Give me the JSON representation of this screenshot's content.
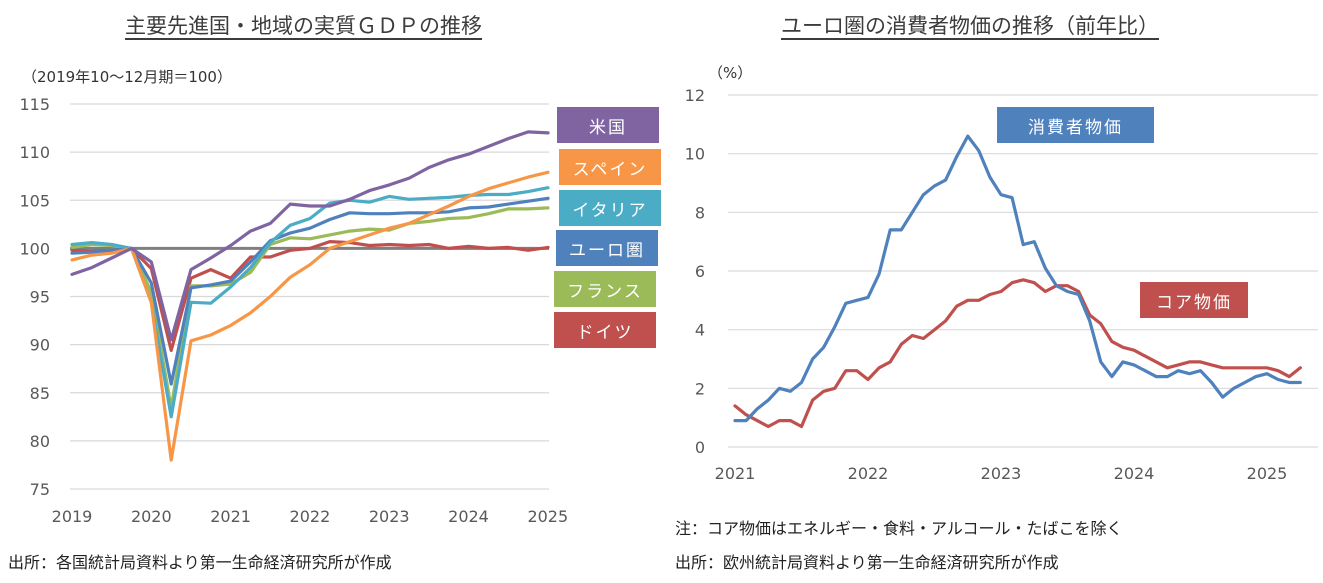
{
  "chart_data": [
    {
      "type": "line",
      "title": "主要先進国・地域の実質ＧＤＰの推移",
      "ylabel": "（2019年10～12月期＝100）",
      "xlabel": "",
      "frequency": "quarterly",
      "x_start": "2019Q1",
      "x_end": "2025Q1",
      "xticks": [
        "2019",
        "2020",
        "2021",
        "2022",
        "2023",
        "2024",
        "2025"
      ],
      "yticks": [
        75,
        80,
        85,
        90,
        95,
        100,
        105,
        110,
        115
      ],
      "ylim": [
        75,
        115
      ],
      "grid": true,
      "reference_line": {
        "value": 100,
        "color": "#7f7f7f"
      },
      "legend_placement": "right",
      "series": [
        {
          "name": "米国",
          "color": "#8064a2",
          "values": [
            97.3,
            98.0,
            99.0,
            100.0,
            98.6,
            90.5,
            97.8,
            99.0,
            100.3,
            101.8,
            102.6,
            104.6,
            104.4,
            104.4,
            105.1,
            106.0,
            106.6,
            107.3,
            108.4,
            109.2,
            109.8,
            110.6,
            111.4,
            112.1,
            112.0
          ]
        },
        {
          "name": "スペイン",
          "color": "#f79646",
          "values": [
            98.8,
            99.3,
            99.5,
            100.0,
            94.4,
            78.0,
            90.4,
            91.0,
            92.0,
            93.3,
            95.0,
            97.0,
            98.3,
            100.0,
            100.7,
            101.4,
            102.1,
            102.6,
            103.5,
            104.4,
            105.4,
            106.2,
            106.8,
            107.4,
            107.9
          ]
        },
        {
          "name": "イタリア",
          "color": "#4bacc6",
          "values": [
            100.4,
            100.6,
            100.4,
            100.0,
            94.4,
            82.5,
            94.4,
            94.3,
            96.0,
            98.0,
            100.6,
            102.4,
            103.1,
            104.7,
            105.0,
            104.8,
            105.4,
            105.1,
            105.2,
            105.3,
            105.5,
            105.6,
            105.6,
            105.9,
            106.3
          ]
        },
        {
          "name": "ユーロ圏",
          "color": "#4f81bd",
          "values": [
            99.5,
            99.6,
            99.8,
            100.0,
            96.4,
            85.9,
            95.9,
            96.2,
            96.6,
            98.6,
            100.8,
            101.6,
            102.1,
            103.0,
            103.7,
            103.6,
            103.6,
            103.7,
            103.7,
            103.8,
            104.2,
            104.3,
            104.6,
            104.9,
            105.2
          ]
        },
        {
          "name": "フランス",
          "color": "#9bbb59",
          "values": [
            100.1,
            100.4,
            100.3,
            100.0,
            95.4,
            83.4,
            96.1,
            96.1,
            96.3,
            97.5,
            100.4,
            101.1,
            101.0,
            101.4,
            101.8,
            102.0,
            101.9,
            102.6,
            102.8,
            103.1,
            103.2,
            103.6,
            104.1,
            104.1,
            104.2
          ]
        },
        {
          "name": "ドイツ",
          "color": "#c0504d",
          "values": [
            99.8,
            99.7,
            99.8,
            100.0,
            97.9,
            89.4,
            96.9,
            97.8,
            96.9,
            99.1,
            99.1,
            99.8,
            100.0,
            100.7,
            100.6,
            100.3,
            100.4,
            100.3,
            100.4,
            100.0,
            100.2,
            100.0,
            100.1,
            99.8,
            100.1
          ]
        }
      ],
      "source": "出所：各国統計局資料より第一生命経済研究所が作成"
    },
    {
      "type": "line",
      "title": "ユーロ圏の消費者物価の推移（前年比）",
      "ylabel": "（%）",
      "xlabel": "",
      "frequency": "monthly",
      "x_start": "2021-01",
      "x_end": "2025-04",
      "xticks": [
        "2021",
        "2022",
        "2023",
        "2024",
        "2025"
      ],
      "yticks": [
        0,
        2,
        4,
        6,
        8,
        10,
        12
      ],
      "ylim": [
        0,
        12
      ],
      "grid": true,
      "legend_placement": "inline-labels",
      "series": [
        {
          "name": "消費者物価",
          "color": "#4f81bd",
          "values": [
            0.9,
            0.9,
            1.3,
            1.6,
            2.0,
            1.9,
            2.2,
            3.0,
            3.4,
            4.1,
            4.9,
            5.0,
            5.1,
            5.9,
            7.4,
            7.4,
            8.0,
            8.6,
            8.9,
            9.1,
            9.9,
            10.6,
            10.1,
            9.2,
            8.6,
            8.5,
            6.9,
            7.0,
            6.1,
            5.5,
            5.3,
            5.2,
            4.3,
            2.9,
            2.4,
            2.9,
            2.8,
            2.6,
            2.4,
            2.4,
            2.6,
            2.5,
            2.6,
            2.2,
            1.7,
            2.0,
            2.2,
            2.4,
            2.5,
            2.3,
            2.2,
            2.2
          ]
        },
        {
          "name": "コア物価",
          "color": "#c0504d",
          "values": [
            1.4,
            1.1,
            0.9,
            0.7,
            0.9,
            0.9,
            0.7,
            1.6,
            1.9,
            2.0,
            2.6,
            2.6,
            2.3,
            2.7,
            2.9,
            3.5,
            3.8,
            3.7,
            4.0,
            4.3,
            4.8,
            5.0,
            5.0,
            5.2,
            5.3,
            5.6,
            5.7,
            5.6,
            5.3,
            5.5,
            5.5,
            5.3,
            4.5,
            4.2,
            3.6,
            3.4,
            3.3,
            3.1,
            2.9,
            2.7,
            2.8,
            2.9,
            2.9,
            2.8,
            2.7,
            2.7,
            2.7,
            2.7,
            2.7,
            2.6,
            2.4,
            2.7
          ]
        }
      ],
      "note": "注：コア物価はエネルギー・食料・アルコール・たばこを除く",
      "source": "出所：欧州統計局資料より第一生命経済研究所が作成"
    }
  ]
}
